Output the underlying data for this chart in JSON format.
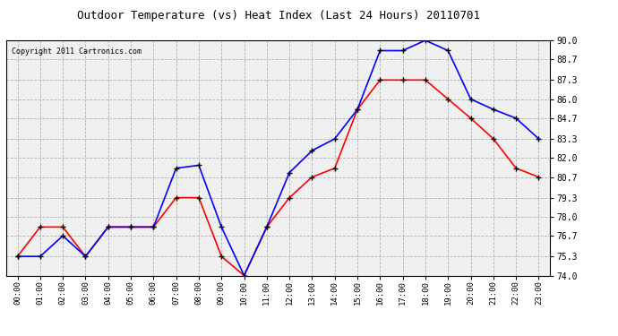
{
  "title": "Outdoor Temperature (vs) Heat Index (Last 24 Hours) 20110701",
  "copyright": "Copyright 2011 Cartronics.com",
  "hours": [
    "00:00",
    "01:00",
    "02:00",
    "03:00",
    "04:00",
    "05:00",
    "06:00",
    "07:00",
    "08:00",
    "09:00",
    "10:00",
    "11:00",
    "12:00",
    "13:00",
    "14:00",
    "15:00",
    "16:00",
    "17:00",
    "18:00",
    "19:00",
    "20:00",
    "21:00",
    "22:00",
    "23:00"
  ],
  "temp": [
    75.3,
    77.3,
    77.3,
    75.3,
    77.3,
    77.3,
    77.3,
    79.3,
    79.3,
    75.3,
    74.0,
    77.3,
    79.3,
    80.7,
    81.3,
    85.3,
    87.3,
    87.3,
    87.3,
    86.0,
    84.7,
    83.3,
    81.3,
    80.7
  ],
  "heat_index": [
    75.3,
    75.3,
    76.7,
    75.3,
    77.3,
    77.3,
    77.3,
    81.3,
    81.5,
    77.3,
    74.0,
    77.3,
    81.0,
    82.5,
    83.3,
    85.3,
    89.3,
    89.3,
    90.0,
    89.3,
    86.0,
    85.3,
    84.7,
    83.3
  ],
  "ylim": [
    74.0,
    90.0
  ],
  "yticks": [
    74.0,
    75.3,
    76.7,
    78.0,
    79.3,
    80.7,
    82.0,
    83.3,
    84.7,
    86.0,
    87.3,
    88.7,
    90.0
  ],
  "temp_color": "red",
  "heat_index_color": "blue",
  "marker_color": "black",
  "bg_color": "#f0f0f0",
  "grid_color": "#aaaaaa",
  "title_fontsize": 9,
  "copyright_fontsize": 6
}
